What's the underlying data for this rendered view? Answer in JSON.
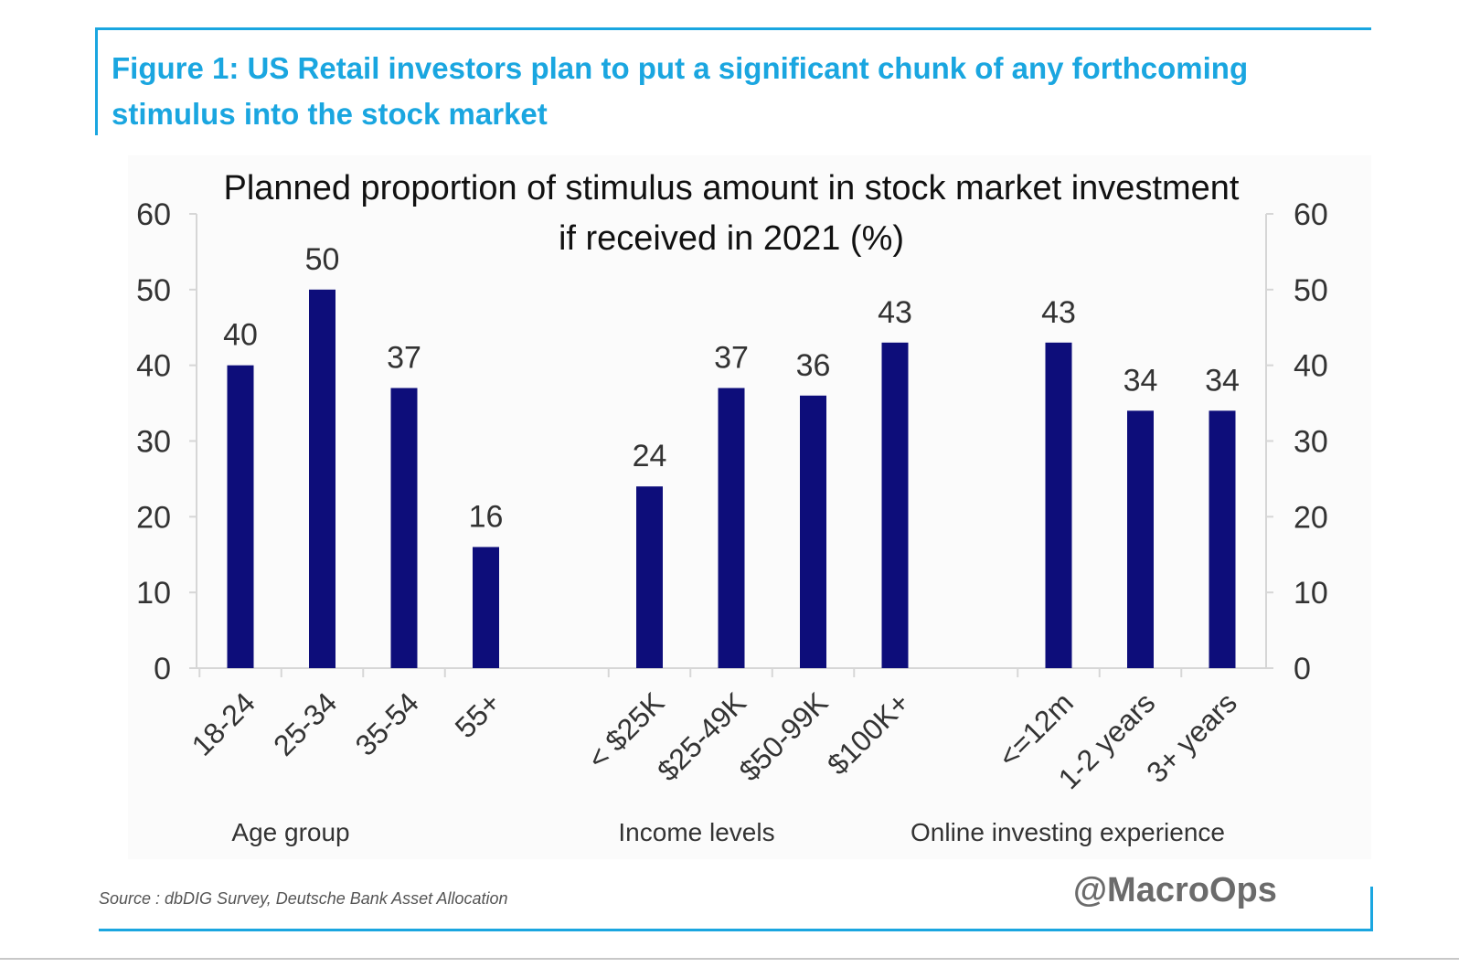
{
  "figure": {
    "title": "Figure 1: US Retail investors plan to put a significant chunk of any forthcoming stimulus into the stock market"
  },
  "chart_data": {
    "type": "bar",
    "title_line1": "Planned proportion of stimulus amount in stock market investment",
    "title_line2": "if received in 2021 (%)",
    "ylim": [
      0,
      60
    ],
    "yticks": [
      0,
      10,
      20,
      30,
      40,
      50,
      60
    ],
    "groups": [
      {
        "label": "Age group",
        "categories": [
          "18-24",
          "25-34",
          "35-54",
          "55+"
        ],
        "values": [
          40,
          50,
          37,
          16
        ]
      },
      {
        "label": "Income levels",
        "categories": [
          "< $25K",
          "$25-49K",
          "$50-99K",
          "$100K+"
        ],
        "values": [
          24,
          37,
          36,
          43
        ]
      },
      {
        "label": "Online investing experience",
        "categories": [
          "<=12m",
          "1-2 years",
          "3+ years"
        ],
        "values": [
          43,
          34,
          34
        ]
      }
    ],
    "bar_color": "#0d0d7a",
    "grid": false,
    "legend": "none"
  },
  "source": "Source : dbDIG Survey, Deutsche Bank Asset Allocation",
  "watermark": "@MacroOps",
  "colors": {
    "accent": "#1aa6e0",
    "bar": "#0d0d7a",
    "text": "#333333"
  }
}
